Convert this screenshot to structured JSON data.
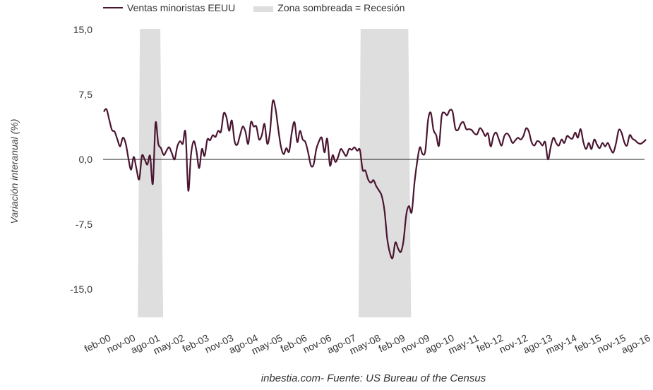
{
  "legend": {
    "series_label": "Ventas minoristas EEUU",
    "shade_label": "Zona sombreada = Recesión"
  },
  "source": "inbestia.com- Fuente: US Bureau of the Census",
  "colors": {
    "line": "#4a1530",
    "recession": "#dedede",
    "zero_line": "#222222",
    "text": "#333333"
  },
  "chart_data": {
    "type": "line",
    "title": "",
    "xlabel": "",
    "ylabel": "Variación interanual (%)",
    "ylim": [
      -15,
      15
    ],
    "yticks": [
      "15,0",
      "7,5",
      "0,0",
      "-7,5",
      "-15,0"
    ],
    "ytick_values": [
      15,
      7.5,
      0,
      -7.5,
      -15
    ],
    "xticks": [
      "feb-00",
      "nov-00",
      "ago-01",
      "may-02",
      "feb-03",
      "nov-03",
      "ago-04",
      "may-05",
      "feb-06",
      "nov-06",
      "ago-07",
      "may-08",
      "feb-09",
      "nov-09",
      "ago-10",
      "may-11",
      "feb-12",
      "nov-12",
      "ago-13",
      "may-14",
      "feb-15",
      "nov-15",
      "ago-16"
    ],
    "x_start": "feb-00",
    "x_end": "oct-16",
    "grid": false,
    "legend_position": "top-left",
    "recessions": [
      {
        "start_month_index": 13,
        "end_month_index": 21
      },
      {
        "start_month_index": 94,
        "end_month_index": 112
      }
    ],
    "series": [
      {
        "name": "Ventas minoristas EEUU",
        "values": [
          5.5,
          5.8,
          4.6,
          3.4,
          3.2,
          2.3,
          1.5,
          2.5,
          1.9,
          0.2,
          -1.2,
          0.3,
          -1.1,
          -2.3,
          0.4,
          0.0,
          -0.6,
          0.4,
          -2.8,
          4.2,
          1.8,
          1.3,
          0.5,
          1.0,
          1.4,
          0.7,
          0.0,
          1.5,
          2.1,
          1.8,
          3.1,
          -3.6,
          0.5,
          2.1,
          1.0,
          -1.0,
          1.2,
          0.4,
          2.3,
          2.2,
          2.8,
          2.6,
          3.3,
          3.2,
          5.3,
          4.9,
          3.3,
          4.5,
          2.1,
          1.7,
          2.8,
          3.8,
          3.2,
          1.8,
          4.3,
          3.8,
          3.8,
          2.3,
          2.8,
          4.1,
          1.8,
          3.2,
          6.7,
          5.9,
          3.6,
          1.5,
          0.6,
          1.3,
          0.9,
          3.1,
          4.3,
          2.0,
          3.3,
          2.3,
          2.0,
          0.8,
          -0.7,
          -0.6,
          1.2,
          2.1,
          2.5,
          0.8,
          2.4,
          -0.7,
          0.5,
          -0.3,
          0.3,
          1.2,
          0.8,
          0.4,
          1.2,
          1.1,
          1.4,
          1.0,
          1.1,
          -1.2,
          -1.3,
          -2.3,
          -2.7,
          -2.4,
          -3.1,
          -3.6,
          -4.2,
          -5.9,
          -9.1,
          -10.8,
          -11.4,
          -9.6,
          -10.3,
          -10.7,
          -9.4,
          -6.4,
          -5.4,
          -6.1,
          -2.8,
          -0.3,
          1.4,
          0.6,
          1.0,
          4.5,
          5.4,
          3.4,
          2.8,
          1.6,
          5.0,
          5.4,
          5.1,
          5.7,
          5.5,
          3.6,
          3.4,
          4.1,
          4.3,
          3.5,
          3.5,
          3.4,
          3.0,
          2.9,
          3.6,
          3.3,
          2.7,
          3.0,
          1.5,
          2.7,
          3.1,
          2.3,
          1.6,
          2.7,
          3.0,
          2.6,
          1.9,
          2.2,
          2.5,
          2.3,
          2.7,
          3.6,
          3.2,
          2.0,
          1.6,
          2.1,
          2.0,
          1.6,
          2.0,
          0.0,
          1.4,
          2.5,
          1.9,
          1.6,
          2.3,
          1.9,
          2.7,
          2.5,
          2.4,
          3.1,
          2.5,
          3.5,
          2.0,
          1.2,
          1.9,
          1.2,
          2.3,
          1.7,
          1.3,
          1.9,
          1.5,
          1.9,
          1.2,
          0.8,
          1.9,
          3.4,
          3.1,
          2.0,
          1.6,
          2.8,
          2.4,
          2.2,
          1.9,
          1.8,
          2.0,
          2.3
        ]
      }
    ]
  }
}
